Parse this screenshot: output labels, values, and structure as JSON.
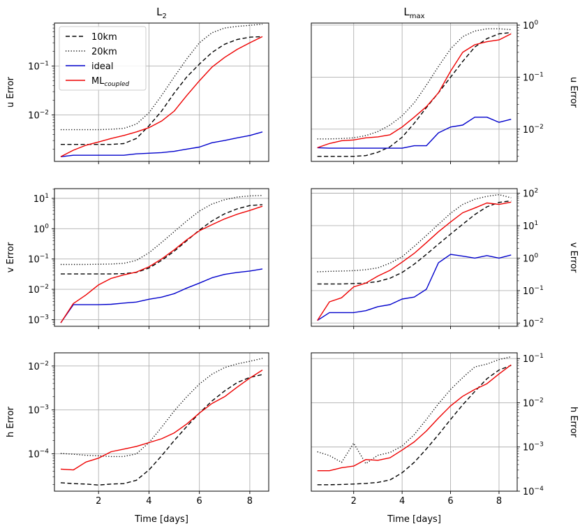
{
  "chart_data": {
    "type": "line",
    "columns": [
      {
        "title_base": "L",
        "title_sub": "2"
      },
      {
        "title_base": "L",
        "title_sub": "max"
      }
    ],
    "xlabel": "Time [days]",
    "x_ticks": [
      "2",
      "4",
      "6",
      "8"
    ],
    "x_tick_values": [
      2,
      4,
      6,
      8
    ],
    "xlim": [
      0.25,
      8.75
    ],
    "x": [
      0.5,
      1.0,
      1.5,
      2.0,
      2.5,
      3.0,
      3.5,
      4.0,
      4.5,
      5.0,
      5.5,
      6.0,
      6.5,
      7.0,
      7.5,
      8.0,
      8.5
    ],
    "legend": {
      "placement": "upper-left",
      "entries": [
        {
          "key": "10km",
          "label": "10km"
        },
        {
          "key": "20km",
          "label": "20km"
        },
        {
          "key": "ideal",
          "label": "ideal"
        },
        {
          "key": "ml",
          "label_base": "ML",
          "label_sub": "coupled"
        }
      ]
    },
    "series_styles": {
      "10km": {
        "color": "#000000",
        "dash": "6,3.5"
      },
      "20km": {
        "color": "#000000",
        "dash": "1.2,2.6"
      },
      "ideal": {
        "color": "#0000cc",
        "dash": ""
      },
      "ml": {
        "color": "#ee0000",
        "dash": ""
      }
    },
    "panels": [
      {
        "id": "u-l2",
        "row": 0,
        "col": 0,
        "ylabel": "u Error",
        "ylabel_side": "left",
        "ylim_log10": [
          -2.95,
          -0.12
        ],
        "y_ticks": [
          {
            "base": "10",
            "exp": "−2",
            "log": -2
          },
          {
            "base": "10",
            "exp": "−1",
            "log": -1
          }
        ],
        "series": [
          {
            "key": "10km",
            "values": [
              0.0025,
              0.0025,
              0.0025,
              0.0025,
              0.0025,
              0.0026,
              0.0033,
              0.006,
              0.012,
              0.028,
              0.06,
              0.11,
              0.19,
              0.28,
              0.35,
              0.39,
              0.4
            ]
          },
          {
            "key": "20km",
            "values": [
              0.005,
              0.005,
              0.005,
              0.005,
              0.0051,
              0.0053,
              0.0065,
              0.011,
              0.025,
              0.06,
              0.14,
              0.3,
              0.48,
              0.6,
              0.65,
              0.68,
              0.72
            ]
          },
          {
            "key": "ideal",
            "values": [
              0.0014,
              0.0015,
              0.0015,
              0.0015,
              0.0015,
              0.0015,
              0.0016,
              0.00165,
              0.0017,
              0.0018,
              0.002,
              0.0022,
              0.0027,
              0.003,
              0.0034,
              0.0038,
              0.0045
            ]
          },
          {
            "key": "ml",
            "values": [
              0.0014,
              0.0019,
              0.0024,
              0.0028,
              0.0033,
              0.0038,
              0.0045,
              0.0055,
              0.0075,
              0.012,
              0.025,
              0.05,
              0.095,
              0.15,
              0.22,
              0.3,
              0.4
            ]
          }
        ]
      },
      {
        "id": "u-lmax",
        "row": 0,
        "col": 1,
        "ylabel": "u Error",
        "ylabel_side": "right",
        "ylim_log10": [
          -2.62,
          0.04
        ],
        "y_ticks": [
          {
            "base": "10",
            "exp": "−2",
            "log": -2
          },
          {
            "base": "10",
            "exp": "−1",
            "log": -1
          },
          {
            "base": "10",
            "exp": "0",
            "log": 0
          }
        ],
        "series": [
          {
            "key": "10km",
            "values": [
              0.003,
              0.003,
              0.003,
              0.003,
              0.0031,
              0.0036,
              0.0046,
              0.007,
              0.013,
              0.026,
              0.05,
              0.1,
              0.2,
              0.38,
              0.55,
              0.68,
              0.72
            ]
          },
          {
            "key": "20km",
            "values": [
              0.0065,
              0.0065,
              0.0066,
              0.0068,
              0.0075,
              0.009,
              0.012,
              0.018,
              0.032,
              0.07,
              0.16,
              0.35,
              0.6,
              0.77,
              0.85,
              0.85,
              0.82
            ]
          },
          {
            "key": "ideal",
            "values": [
              0.0044,
              0.0043,
              0.0043,
              0.0043,
              0.0043,
              0.0043,
              0.0043,
              0.0043,
              0.0048,
              0.0048,
              0.0085,
              0.011,
              0.012,
              0.017,
              0.017,
              0.0135,
              0.0155
            ]
          },
          {
            "key": "ml",
            "values": [
              0.0044,
              0.0053,
              0.006,
              0.0062,
              0.0068,
              0.0071,
              0.0078,
              0.011,
              0.017,
              0.027,
              0.05,
              0.13,
              0.3,
              0.42,
              0.48,
              0.52,
              0.68
            ]
          }
        ]
      },
      {
        "id": "v-l2",
        "row": 1,
        "col": 0,
        "ylabel": "v Error",
        "ylabel_side": "left",
        "ylim_log10": [
          -3.22,
          1.32
        ],
        "y_ticks": [
          {
            "base": "10",
            "exp": "−3",
            "log": -3
          },
          {
            "base": "10",
            "exp": "−2",
            "log": -2
          },
          {
            "base": "10",
            "exp": "−1",
            "log": -1
          },
          {
            "base": "10",
            "exp": "0",
            "log": 0
          },
          {
            "base": "10",
            "exp": "1",
            "log": 1
          }
        ],
        "series": [
          {
            "key": "10km",
            "values": [
              0.032,
              0.032,
              0.032,
              0.032,
              0.032,
              0.033,
              0.036,
              0.05,
              0.09,
              0.18,
              0.4,
              0.9,
              1.8,
              3.1,
              4.5,
              5.8,
              6.2
            ]
          },
          {
            "key": "20km",
            "values": [
              0.066,
              0.066,
              0.066,
              0.067,
              0.068,
              0.072,
              0.09,
              0.16,
              0.35,
              0.8,
              1.8,
              3.8,
              6.5,
              9.0,
              11.0,
              12.0,
              12.5
            ]
          },
          {
            "key": "ideal",
            "values": [
              0.00078,
              0.0031,
              0.0031,
              0.0031,
              0.0032,
              0.0035,
              0.0038,
              0.0047,
              0.0055,
              0.0072,
              0.011,
              0.016,
              0.024,
              0.031,
              0.036,
              0.04,
              0.047
            ]
          },
          {
            "key": "ml",
            "values": [
              0.00078,
              0.0034,
              0.0065,
              0.014,
              0.023,
              0.03,
              0.037,
              0.055,
              0.1,
              0.2,
              0.43,
              0.85,
              1.35,
              2.1,
              3.0,
              4.0,
              5.5
            ]
          }
        ]
      },
      {
        "id": "v-lmax",
        "row": 1,
        "col": 1,
        "ylabel": "v Error",
        "ylabel_side": "right",
        "ylim_log10": [
          -2.1,
          2.14
        ],
        "y_ticks": [
          {
            "base": "10",
            "exp": "−2",
            "log": -2
          },
          {
            "base": "10",
            "exp": "−1",
            "log": -1
          },
          {
            "base": "10",
            "exp": "0",
            "log": 0
          },
          {
            "base": "10",
            "exp": "1",
            "log": 1
          },
          {
            "base": "10",
            "exp": "2",
            "log": 2
          }
        ],
        "series": [
          {
            "key": "10km",
            "values": [
              0.16,
              0.16,
              0.16,
              0.165,
              0.17,
              0.19,
              0.24,
              0.36,
              0.65,
              1.3,
              2.7,
              5.5,
              11.0,
              22.0,
              38.0,
              52.0,
              58.0
            ]
          },
          {
            "key": "20km",
            "values": [
              0.38,
              0.39,
              0.4,
              0.41,
              0.44,
              0.5,
              0.7,
              1.1,
              2.3,
              5.0,
              11.0,
              24.0,
              45.0,
              65.0,
              80.0,
              90.0,
              72.0
            ]
          },
          {
            "key": "ideal",
            "values": [
              0.012,
              0.021,
              0.021,
              0.021,
              0.024,
              0.032,
              0.037,
              0.055,
              0.063,
              0.11,
              0.72,
              1.3,
              1.15,
              1.0,
              1.2,
              1.0,
              1.25
            ]
          },
          {
            "key": "ml",
            "values": [
              0.012,
              0.045,
              0.06,
              0.13,
              0.17,
              0.28,
              0.42,
              0.75,
              1.4,
              3.0,
              6.5,
              13.0,
              25.0,
              35.0,
              50.0,
              45.0,
              53.0
            ]
          }
        ]
      },
      {
        "id": "h-l2",
        "row": 2,
        "col": 0,
        "ylabel": "h Error",
        "ylabel_side": "left",
        "ylim_log10": [
          -4.85,
          -1.7
        ],
        "y_ticks": [
          {
            "base": "10",
            "exp": "−4",
            "log": -4
          },
          {
            "base": "10",
            "exp": "−3",
            "log": -3
          },
          {
            "base": "10",
            "exp": "−2",
            "log": -2
          }
        ],
        "series": [
          {
            "key": "10km",
            "values": [
              2.2e-05,
              2.1e-05,
              2.05e-05,
              1.95e-05,
              2.05e-05,
              2.1e-05,
              2.5e-05,
              4.3e-05,
              9e-05,
              0.0002,
              0.00042,
              0.00085,
              0.0016,
              0.0027,
              0.0042,
              0.0055,
              0.0064
            ]
          },
          {
            "key": "20km",
            "values": [
              0.000102,
              9.8e-05,
              9.3e-05,
              9e-05,
              8.7e-05,
              8.7e-05,
              0.0001,
              0.00018,
              0.0004,
              0.00095,
              0.002,
              0.0039,
              0.0065,
              0.0092,
              0.0112,
              0.0128,
              0.015
            ]
          },
          {
            "key": "ideal",
            "values": []
          },
          {
            "key": "ml",
            "values": [
              4.5e-05,
              4.3e-05,
              6.5e-05,
              8e-05,
              0.000112,
              0.000128,
              0.000148,
              0.00018,
              0.00022,
              0.0003,
              0.00048,
              0.00085,
              0.0014,
              0.002,
              0.0033,
              0.0053,
              0.0081
            ]
          }
        ]
      },
      {
        "id": "h-lmax",
        "row": 2,
        "col": 1,
        "ylabel": "h Error",
        "ylabel_side": "right",
        "ylim_log10": [
          -4.0,
          -0.87
        ],
        "y_ticks": [
          {
            "base": "10",
            "exp": "−4",
            "log": -4
          },
          {
            "base": "10",
            "exp": "−3",
            "log": -3
          },
          {
            "base": "10",
            "exp": "−2",
            "log": -2
          },
          {
            "base": "10",
            "exp": "−1",
            "log": -1
          }
        ],
        "series": [
          {
            "key": "10km",
            "values": [
              0.00014,
              0.00014,
              0.000142,
              0.000145,
              0.00015,
              0.000158,
              0.00018,
              0.00026,
              0.00045,
              0.0009,
              0.0019,
              0.0042,
              0.009,
              0.018,
              0.035,
              0.055,
              0.07
            ]
          },
          {
            "key": "20km",
            "values": [
              0.00078,
              0.00064,
              0.00045,
              0.00122,
              0.00042,
              0.00065,
              0.00075,
              0.00105,
              0.0019,
              0.0042,
              0.0095,
              0.02,
              0.037,
              0.065,
              0.075,
              0.095,
              0.11
            ]
          },
          {
            "key": "ideal",
            "values": []
          },
          {
            "key": "ml",
            "values": [
              0.00029,
              0.00029,
              0.00034,
              0.00037,
              0.00052,
              0.0005,
              0.00057,
              0.00085,
              0.0013,
              0.0023,
              0.0045,
              0.0085,
              0.014,
              0.02,
              0.027,
              0.045,
              0.072
            ]
          }
        ]
      }
    ]
  }
}
